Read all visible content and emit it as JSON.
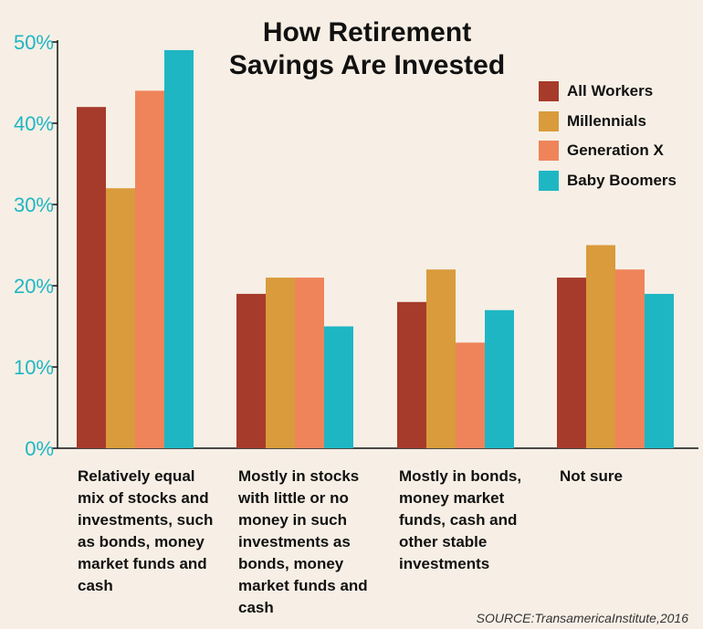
{
  "title_lines": [
    "How Retirement",
    "Savings Are Invested"
  ],
  "source": "SOURCE:TransamericaInstitute,2016",
  "chart_data": {
    "type": "bar",
    "title": "How Retirement Savings Are Invested",
    "categories": [
      "Relatively equal mix of stocks and investments, such as bonds, money market funds and cash",
      "Mostly in stocks with little or no money in such investments as bonds, money market funds and cash",
      "Mostly in bonds, money market funds, cash and other stable investments",
      "Not sure"
    ],
    "series": [
      {
        "name": "All Workers",
        "color": "#a63b2b",
        "values": [
          42,
          19,
          18,
          21
        ]
      },
      {
        "name": "Millennials",
        "color": "#d99b3c",
        "values": [
          32,
          21,
          22,
          25
        ]
      },
      {
        "name": "Generation X",
        "color": "#ef845a",
        "values": [
          44,
          21,
          13,
          22
        ]
      },
      {
        "name": "Baby Boomers",
        "color": "#1fb6c4",
        "values": [
          49,
          15,
          17,
          19
        ]
      }
    ],
    "yticks": [
      "0%",
      "10%",
      "20%",
      "30%",
      "40%",
      "50%"
    ],
    "ylim": [
      0,
      50
    ],
    "ytick_color": "#1fb6c4",
    "xlabel": "",
    "ylabel": "",
    "legend_position": "top-right",
    "grid": false
  }
}
